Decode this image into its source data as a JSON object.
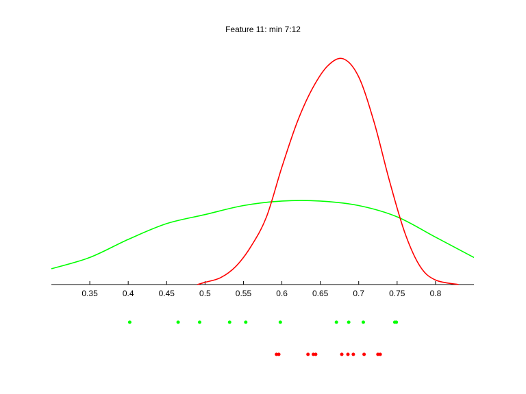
{
  "chart_data": {
    "type": "line",
    "title": "Feature 11: min 7:12",
    "xlabel": "",
    "ylabel": "",
    "xlim": [
      0.3,
      0.85
    ],
    "xticks": [
      "0.35",
      "0.4",
      "0.45",
      "0.5",
      "0.55",
      "0.6",
      "0.65",
      "0.7",
      "0.75",
      "0.8"
    ],
    "grid": false,
    "legend": "none",
    "series": [
      {
        "color": "#00ff00",
        "x": [
          0.3,
          0.35,
          0.4,
          0.45,
          0.5,
          0.55,
          0.6,
          0.65,
          0.7,
          0.75,
          0.8,
          0.85
        ],
        "y": [
          0.07,
          0.12,
          0.2,
          0.27,
          0.31,
          0.35,
          0.37,
          0.37,
          0.35,
          0.3,
          0.21,
          0.12
        ]
      },
      {
        "color": "#ff0000",
        "x": [
          0.49,
          0.5,
          0.52,
          0.54,
          0.56,
          0.58,
          0.6,
          0.62,
          0.64,
          0.66,
          0.68,
          0.7,
          0.72,
          0.74,
          0.76,
          0.78,
          0.8,
          0.83
        ],
        "y": [
          0.0,
          0.01,
          0.03,
          0.08,
          0.17,
          0.3,
          0.52,
          0.72,
          0.87,
          0.97,
          1.0,
          0.92,
          0.72,
          0.46,
          0.23,
          0.08,
          0.02,
          0.0
        ]
      }
    ],
    "samples": [
      {
        "color": "#00ff00",
        "x": [
          0.402,
          0.465,
          0.493,
          0.532,
          0.553,
          0.598,
          0.671,
          0.687,
          0.706,
          0.747,
          0.749
        ]
      },
      {
        "color": "#ff0000",
        "x": [
          0.593,
          0.596,
          0.634,
          0.641,
          0.644,
          0.678,
          0.686,
          0.693,
          0.707,
          0.725,
          0.728
        ]
      }
    ]
  }
}
